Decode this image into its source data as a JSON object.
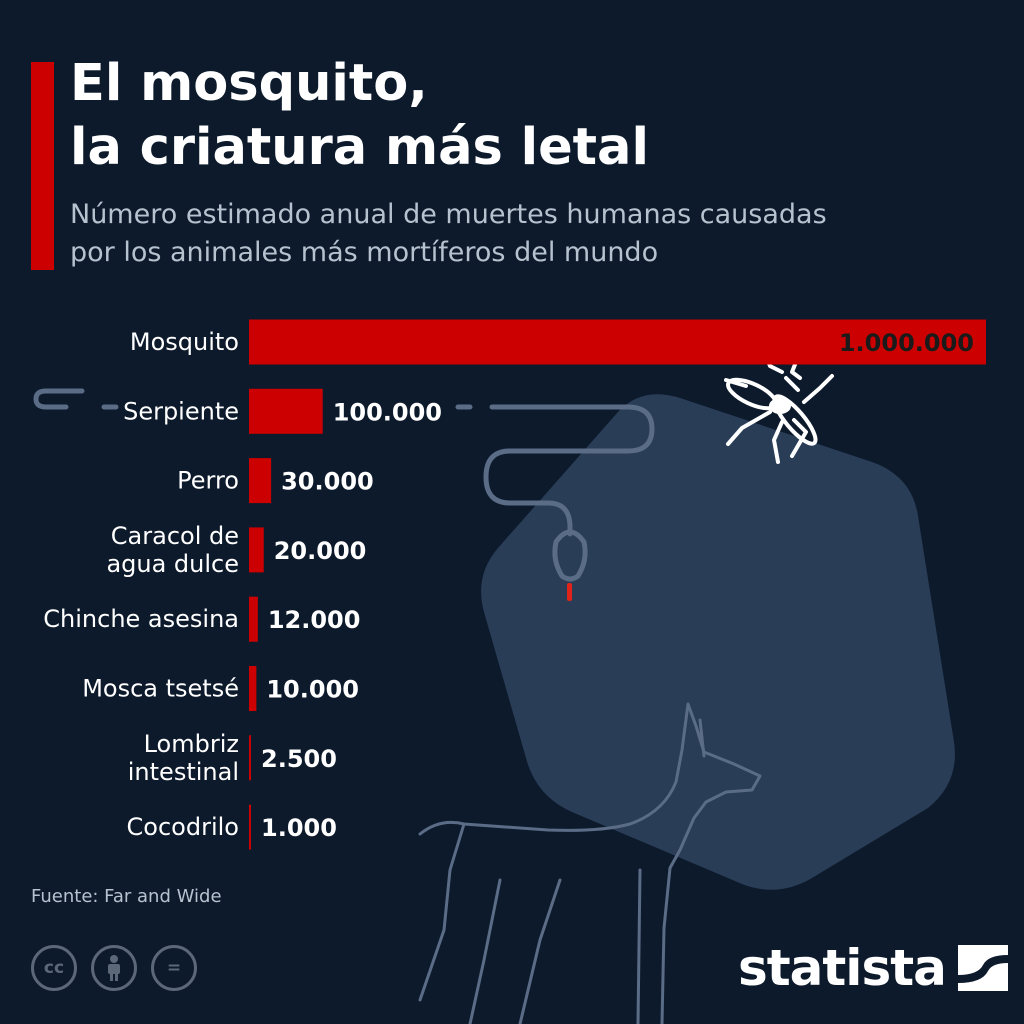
{
  "header": {
    "title_line1": "El mosquito,",
    "title_line2": "la criatura más letal",
    "subtitle_line1": "Número estimado anual de muertes humanas causadas",
    "subtitle_line2": "por los animales más mortíferos del mundo"
  },
  "chart_data": {
    "type": "bar",
    "orientation": "horizontal",
    "title": "El mosquito, la criatura más letal",
    "subtitle": "Número estimado anual de muertes humanas causadas por los animales más mortíferos del mundo",
    "categories": [
      [
        "Mosquito"
      ],
      [
        "Serpiente"
      ],
      [
        "Perro"
      ],
      [
        "Caracol de",
        "agua dulce"
      ],
      [
        "Chinche asesina"
      ],
      [
        "Mosca tsetsé"
      ],
      [
        "Lombriz",
        "intestinal"
      ],
      [
        "Cocodrilo"
      ]
    ],
    "values": [
      1000000,
      100000,
      30000,
      20000,
      12000,
      10000,
      2500,
      1000
    ],
    "value_labels": [
      "1.000.000",
      "100.000",
      "30.000",
      "20.000",
      "12.000",
      "10.000",
      "2.500",
      "1.000"
    ],
    "xlim": [
      0,
      1000000
    ],
    "bar_color": "#cc0000",
    "grid": false,
    "legend": "none"
  },
  "source": "Fuente: Far and Wide",
  "license_icons": [
    "cc-icon",
    "attribution-icon",
    "no-derivatives-icon"
  ],
  "license_glyphs": [
    "cc",
    "",
    "="
  ],
  "brand": {
    "name": "statista"
  },
  "colors": {
    "background": "#0d1a2c",
    "accent": "#cc0000",
    "text": "#ffffff",
    "muted_text": "#b7c2cf",
    "illustration_stroke": "#5a6c86",
    "backdrop_shape": "#2b3f5a"
  },
  "illustrations": [
    "snake-icon",
    "mosquito-icon",
    "dog-icon"
  ]
}
